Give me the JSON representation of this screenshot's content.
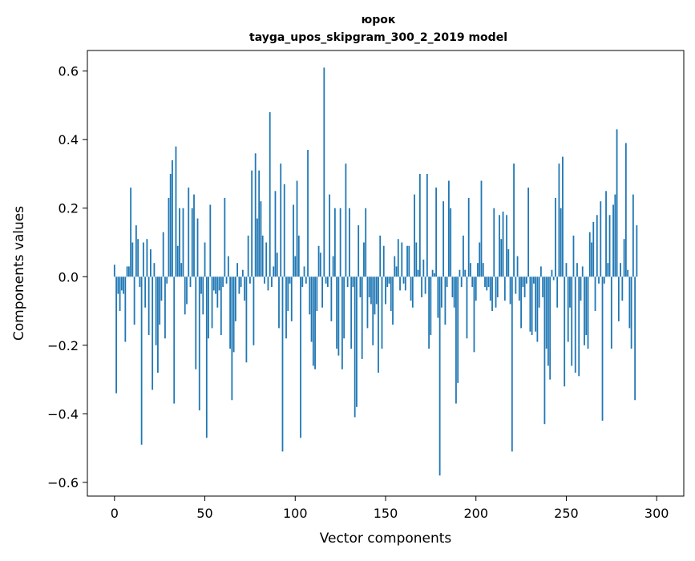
{
  "chart_data": {
    "type": "bar",
    "title": "юрок",
    "subtitle": "tayga_upos_skipgram_300_2_2019 model",
    "xlabel": "Vector components",
    "ylabel": "Components values",
    "xlim": [
      -15,
      315
    ],
    "ylim": [
      -0.64,
      0.66
    ],
    "xticks": [
      0,
      50,
      100,
      150,
      200,
      250,
      300
    ],
    "xtick_labels": [
      "0",
      "50",
      "100",
      "150",
      "200",
      "250",
      "300"
    ],
    "yticks": [
      -0.6,
      -0.4,
      -0.2,
      0.0,
      0.2,
      0.4,
      0.6
    ],
    "ytick_labels": [
      "−0.6",
      "−0.4",
      "−0.2",
      "0.0",
      "0.2",
      "0.4",
      "0.6"
    ],
    "bar_color": "#1f77b4",
    "grid": false,
    "x": "0..299 (component index)",
    "values": [
      0.035,
      -0.34,
      -0.05,
      -0.1,
      -0.04,
      -0.05,
      -0.19,
      0.03,
      0.03,
      0.26,
      0.1,
      -0.14,
      0.15,
      0.11,
      -0.03,
      -0.49,
      0.1,
      -0.09,
      0.11,
      -0.17,
      0.08,
      -0.33,
      0.04,
      -0.2,
      -0.28,
      -0.14,
      -0.07,
      0.13,
      -0.18,
      -0.02,
      0.23,
      0.3,
      0.34,
      -0.37,
      0.38,
      0.09,
      0.2,
      0.04,
      0.2,
      -0.11,
      -0.08,
      0.26,
      -0.03,
      0.2,
      0.24,
      -0.27,
      0.17,
      -0.39,
      -0.05,
      -0.11,
      0.1,
      -0.47,
      -0.18,
      0.21,
      -0.15,
      -0.04,
      -0.05,
      -0.09,
      -0.04,
      -0.17,
      -0.03,
      0.23,
      -0.02,
      0.06,
      -0.21,
      -0.36,
      -0.22,
      -0.13,
      0.04,
      -0.05,
      -0.03,
      0.02,
      -0.07,
      -0.25,
      0.12,
      -0.02,
      0.31,
      -0.2,
      0.36,
      0.17,
      0.31,
      0.22,
      0.12,
      -0.02,
      0.1,
      -0.04,
      0.48,
      -0.03,
      0.03,
      0.25,
      0.07,
      -0.15,
      0.33,
      -0.51,
      0.27,
      -0.18,
      -0.1,
      -0.02,
      -0.13,
      0.21,
      0.06,
      0.28,
      0.12,
      -0.47,
      -0.03,
      0.03,
      -0.02,
      0.37,
      -0.11,
      -0.19,
      -0.26,
      -0.27,
      -0.1,
      0.09,
      0.07,
      -0.09,
      0.61,
      -0.02,
      -0.03,
      0.24,
      -0.13,
      0.06,
      0.2,
      -0.21,
      -0.23,
      0.2,
      -0.27,
      -0.18,
      0.33,
      -0.03,
      0.2,
      -0.21,
      -0.03,
      -0.41,
      -0.38,
      0.15,
      -0.06,
      -0.24,
      0.1,
      0.2,
      -0.15,
      -0.06,
      -0.08,
      -0.2,
      -0.11,
      -0.08,
      -0.28,
      0.12,
      -0.21,
      0.09,
      -0.08,
      -0.03,
      -0.02,
      -0.1,
      -0.14,
      0.06,
      0.03,
      0.11,
      -0.04,
      0.1,
      -0.02,
      -0.04,
      0.09,
      0.09,
      -0.07,
      -0.09,
      0.24,
      0.1,
      0.02,
      0.3,
      -0.06,
      0.05,
      -0.05,
      0.3,
      -0.21,
      -0.17,
      0.02,
      0.01,
      0.26,
      -0.12,
      -0.58,
      -0.09,
      0.22,
      -0.14,
      -0.03,
      0.28,
      0.2,
      -0.06,
      -0.09,
      -0.37,
      -0.31,
      0.02,
      -0.03,
      0.12,
      0.02,
      -0.18,
      0.23,
      0.04,
      -0.03,
      -0.22,
      -0.07,
      0.04,
      0.1,
      0.28,
      0.04,
      -0.03,
      -0.04,
      -0.03,
      -0.07,
      -0.1,
      0.2,
      -0.09,
      -0.06,
      0.18,
      0.11,
      0.19,
      -0.07,
      0.18,
      0.08,
      -0.08,
      -0.51,
      0.33,
      -0.05,
      0.06,
      -0.07,
      -0.15,
      -0.03,
      -0.06,
      -0.02,
      0.26,
      -0.16,
      -0.17,
      -0.02,
      -0.16,
      -0.19,
      -0.09,
      0.03,
      -0.06,
      -0.43,
      -0.21,
      -0.26,
      -0.3,
      0.02,
      -0.01,
      0.23,
      -0.09,
      0.33,
      0.2,
      0.35,
      -0.32,
      0.04,
      -0.19,
      -0.09,
      -0.26,
      0.12,
      -0.28,
      0.04,
      -0.29,
      -0.07,
      0.03,
      -0.2,
      -0.17,
      -0.21,
      0.13,
      0.1,
      0.16,
      -0.1,
      0.18,
      -0.02,
      0.22,
      -0.42,
      -0.02,
      0.25,
      0.04,
      0.18,
      -0.21,
      0.21,
      0.24,
      0.43,
      -0.13,
      0.04,
      -0.07,
      0.11,
      0.39,
      0.02,
      -0.15,
      -0.21,
      0.24,
      -0.36,
      0.15
    ]
  }
}
